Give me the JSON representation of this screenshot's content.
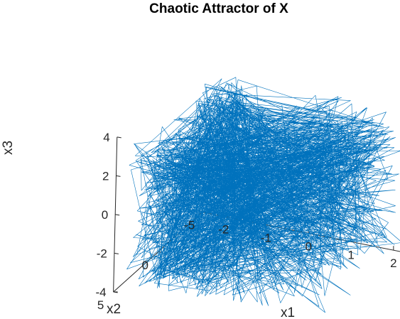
{
  "chart_data": {
    "type": "line",
    "projection": "3d",
    "title": "Chaotic Attractor of X",
    "xlabel": "x1",
    "ylabel": "x2",
    "zlabel": "x3",
    "x_ticks": [
      "-2",
      "-1",
      "0",
      "1",
      "2"
    ],
    "y_ticks": [
      "-5",
      "0",
      "5"
    ],
    "z_ticks": [
      "-4",
      "-2",
      "0",
      "2",
      "4"
    ],
    "xlim": [
      -2.5,
      2.3
    ],
    "ylim": [
      -5,
      5
    ],
    "zlim": [
      -4,
      4
    ],
    "grid": false,
    "colors": {
      "line": "#0072BD",
      "axis": "#262626",
      "title": "#000000",
      "background": "#ffffff"
    },
    "series": [
      {
        "style": "dense chaotic trajectory",
        "point_count": 1500,
        "x_range": [
          -2.3,
          2.3
        ],
        "y_range": [
          -4.5,
          4.5
        ],
        "z_range": [
          -3.7,
          3.6
        ]
      }
    ]
  }
}
